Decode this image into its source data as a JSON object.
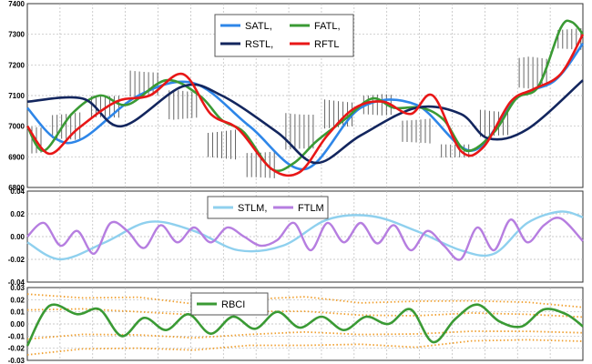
{
  "chart_data": [
    {
      "type": "line",
      "pane": "price",
      "ylim": [
        6800,
        7400
      ],
      "yticks": [
        "6800",
        "6900",
        "7000",
        "7100",
        "7200",
        "7300",
        "7400"
      ],
      "x": [
        0,
        10,
        20,
        30,
        40,
        50,
        60,
        70,
        80,
        90,
        100
      ],
      "price_bars": {
        "high": [
          7020,
          7070,
          7130,
          7210,
          7140,
          7010,
          6950,
          7090,
          7110,
          7120,
          7050,
          6960,
          7080,
          7250,
          7340
        ],
        "low": [
          6890,
          6930,
          7000,
          7070,
          7000,
          6870,
          6800,
          6880,
          6970,
          7020,
          6920,
          6880,
          6940,
          7100,
          7230
        ],
        "x": [
          0,
          7,
          14,
          21,
          28,
          35,
          42,
          49,
          56,
          63,
          70,
          77,
          84,
          91,
          98
        ]
      },
      "series": [
        {
          "name": "SATL",
          "color": "#2e86e8",
          "x": [
            0,
            5,
            10,
            20,
            30,
            40,
            50,
            60,
            70,
            80,
            88,
            95,
            100
          ],
          "values": [
            7060,
            6960,
            6960,
            7100,
            7140,
            7000,
            6860,
            7060,
            7070,
            6920,
            7090,
            7150,
            7270
          ]
        },
        {
          "name": "FATL",
          "color": "#3a9a34",
          "x": [
            0,
            3,
            8,
            13,
            18,
            25,
            31,
            35,
            39,
            44,
            48,
            52,
            57,
            62,
            66,
            71,
            75,
            79,
            84,
            88,
            92,
            96,
            98,
            100
          ],
          "values": [
            7000,
            6920,
            7040,
            7100,
            7070,
            7150,
            7100,
            7020,
            6980,
            6860,
            6880,
            6950,
            7020,
            7090,
            7060,
            7060,
            7020,
            6920,
            6980,
            7090,
            7130,
            7320,
            7340,
            7300
          ]
        },
        {
          "name": "RSTL",
          "color": "#13265e",
          "x": [
            0,
            10,
            17,
            28,
            35,
            45,
            52,
            60,
            70,
            78,
            83,
            90,
            100
          ],
          "values": [
            7080,
            7090,
            7000,
            7130,
            7100,
            6980,
            6880,
            6970,
            7060,
            7040,
            6960,
            6990,
            7150
          ]
        },
        {
          "name": "RFTL",
          "color": "#e81717",
          "x": [
            0,
            4,
            9,
            16,
            22,
            28,
            33,
            38,
            44,
            49,
            54,
            59,
            64,
            69,
            73,
            78,
            82,
            87,
            91,
            96,
            100
          ],
          "values": [
            7000,
            6910,
            6990,
            7080,
            7100,
            7170,
            7040,
            6990,
            6860,
            6850,
            6970,
            7060,
            7080,
            7040,
            7100,
            6920,
            6930,
            7080,
            7120,
            7170,
            7300
          ]
        }
      ],
      "legend": [
        "SATL,",
        "FATL,",
        "RSTL,",
        "RFTL"
      ]
    },
    {
      "type": "line",
      "pane": "momentum",
      "ylim": [
        -0.04,
        0.04
      ],
      "yticks": [
        "-0.04",
        "-0.02",
        "0.00",
        "0.02",
        "0.04"
      ],
      "series": [
        {
          "name": "STLM",
          "color": "#8fd0ee",
          "x": [
            0,
            6,
            14,
            22,
            30,
            38,
            46,
            54,
            62,
            70,
            78,
            84,
            90,
            96,
            100
          ],
          "values": [
            -0.005,
            -0.02,
            -0.005,
            0.013,
            0.005,
            -0.012,
            -0.008,
            0.015,
            0.018,
            0.005,
            -0.012,
            -0.015,
            0.012,
            0.022,
            0.017
          ]
        },
        {
          "name": "FTLM",
          "color": "#b67ee0",
          "x": [
            0,
            3,
            6,
            9,
            12,
            15,
            18,
            21,
            24,
            27,
            30,
            33,
            36,
            39,
            42,
            45,
            48,
            51,
            54,
            57,
            60,
            63,
            66,
            69,
            72,
            75,
            78,
            81,
            84,
            87,
            90,
            93,
            96,
            100
          ],
          "values": [
            0,
            0.012,
            -0.008,
            0.005,
            -0.015,
            0.012,
            0.005,
            -0.01,
            0.01,
            -0.005,
            0.008,
            -0.005,
            0.008,
            0.0,
            -0.008,
            -0.003,
            0.012,
            -0.012,
            0.012,
            -0.005,
            0.012,
            -0.006,
            0.01,
            -0.012,
            0.005,
            -0.008,
            -0.02,
            0.008,
            -0.012,
            0.015,
            -0.005,
            0.01,
            0.016,
            -0.004
          ]
        }
      ],
      "legend": [
        "STLM,",
        "FTLM"
      ]
    },
    {
      "type": "line",
      "pane": "rbci",
      "ylim": [
        -0.03,
        0.03
      ],
      "yticks": [
        "-0.03",
        "-0.02",
        "-0.01",
        "0.00",
        "0.01",
        "0.02",
        "0.03"
      ],
      "series": [
        {
          "name": "RBCI",
          "color": "#3a9a34",
          "x": [
            0,
            4,
            9,
            13,
            17,
            21,
            25,
            29,
            33,
            37,
            41,
            45,
            49,
            53,
            57,
            61,
            65,
            69,
            73,
            77,
            81,
            85,
            89,
            93,
            97,
            100
          ],
          "values": [
            -0.018,
            0.015,
            0.008,
            0.012,
            -0.01,
            0.005,
            -0.005,
            0.008,
            -0.008,
            0.006,
            -0.004,
            0.01,
            -0.003,
            0.006,
            -0.005,
            0.006,
            0.0,
            0.012,
            -0.015,
            0.004,
            0.016,
            0.002,
            -0.002,
            0.012,
            0.008,
            -0.002
          ]
        }
      ],
      "bands": {
        "color": "#f0a030",
        "x": [
          0,
          10,
          20,
          30,
          40,
          50,
          60,
          70,
          80,
          90,
          100
        ],
        "upper2": [
          0.025,
          0.02,
          0.022,
          0.018,
          0.02,
          0.021,
          0.018,
          0.02,
          0.018,
          0.017,
          0.015
        ],
        "upper1": [
          0.012,
          0.011,
          0.01,
          0.009,
          0.01,
          0.009,
          0.008,
          0.008,
          0.008,
          0.007,
          0.007
        ],
        "lower1": [
          -0.012,
          -0.01,
          -0.009,
          -0.01,
          -0.009,
          -0.008,
          -0.008,
          -0.007,
          -0.007,
          -0.007,
          -0.006
        ],
        "lower2": [
          -0.025,
          -0.022,
          -0.02,
          -0.02,
          -0.018,
          -0.019,
          -0.016,
          -0.018,
          -0.015,
          -0.014,
          -0.013
        ]
      },
      "legend": [
        "RBCI"
      ]
    }
  ]
}
